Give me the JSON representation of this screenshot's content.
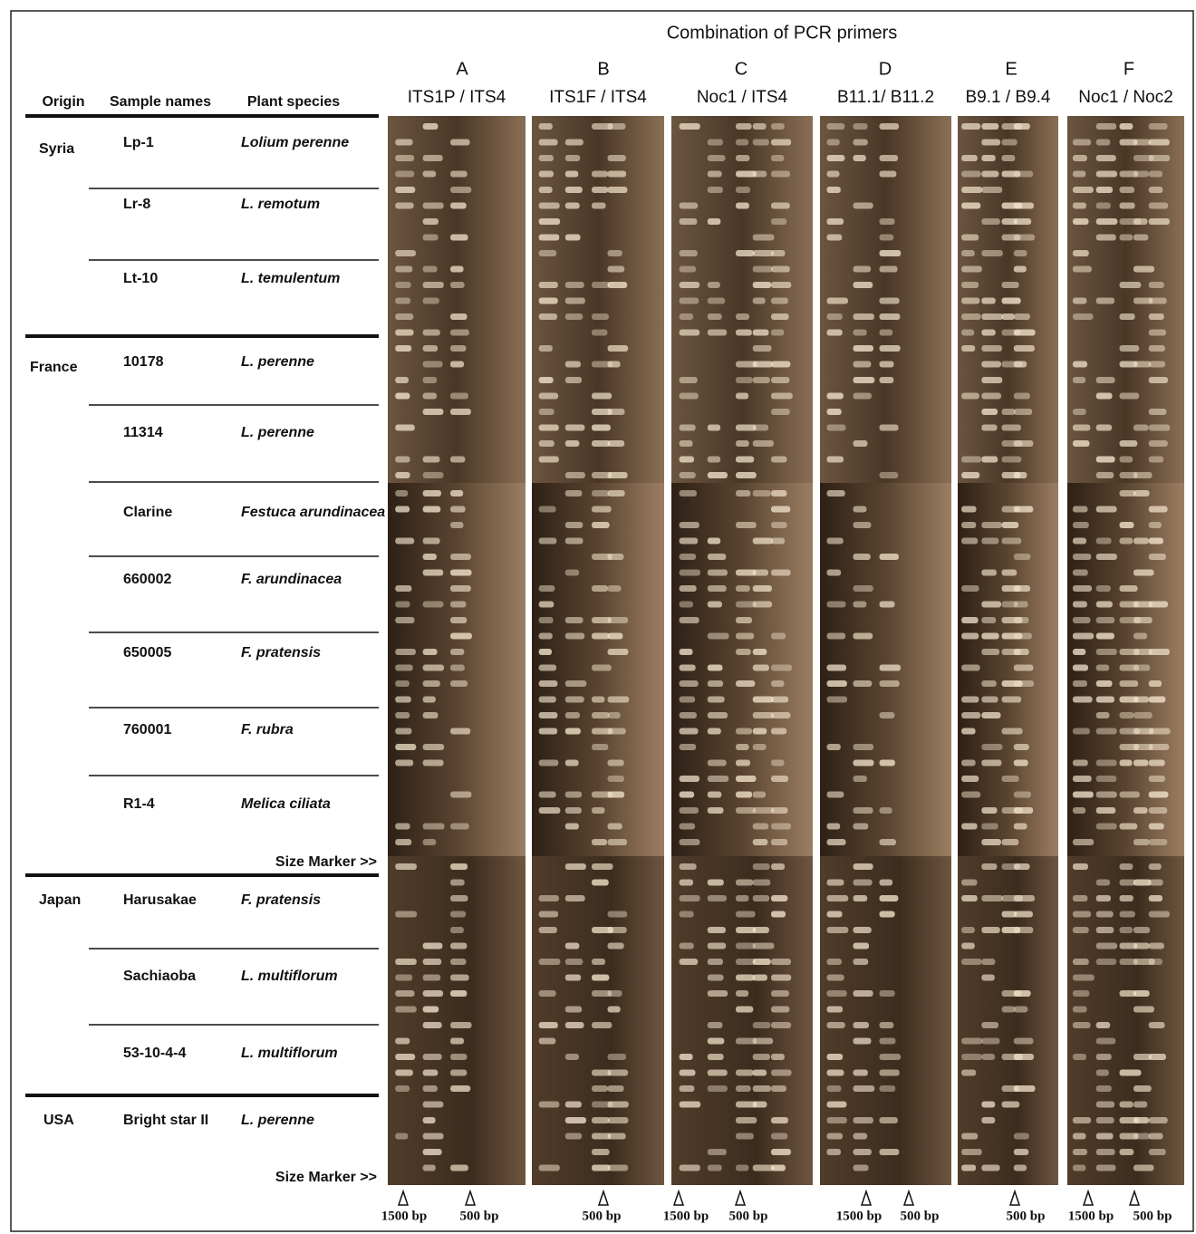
{
  "title": "Combination of PCR primers",
  "primers": [
    {
      "letter": "A",
      "pair": "ITS1P / ITS4"
    },
    {
      "letter": "B",
      "pair": "ITS1F / ITS4"
    },
    {
      "letter": "C",
      "pair": "Noc1 / ITS4"
    },
    {
      "letter": "D",
      "pair": "B11.1/ B11.2"
    },
    {
      "letter": "E",
      "pair": "B9.1 / B9.4"
    },
    {
      "letter": "F",
      "pair": "Noc1 / Noc2"
    }
  ],
  "table": {
    "headers": [
      "Origin",
      "Sample names",
      "Plant species"
    ],
    "groups": [
      {
        "origin": "Syria",
        "samples": [
          {
            "name": "Lp-1",
            "species": "Lolium perenne"
          },
          {
            "name": "Lr-8",
            "species": "L.  remotum"
          },
          {
            "name": "Lt-10",
            "species": "L. temulentum"
          }
        ]
      },
      {
        "origin": "France",
        "samples": [
          {
            "name": "10178",
            "species": "L. perenne"
          },
          {
            "name": "11314",
            "species": "L. perenne"
          },
          {
            "name": "Clarine",
            "species": "Festuca arundinacea"
          },
          {
            "name": "660002",
            "species": "F. arundinacea"
          },
          {
            "name": "650005",
            "species": "F. pratensis"
          },
          {
            "name": "760001",
            "species": "F. rubra"
          },
          {
            "name": "R1-4",
            "species": "Melica ciliata"
          }
        ]
      },
      {
        "origin": "Japan",
        "samples": [
          {
            "name": "Harusakae",
            "species": "F. pratensis"
          },
          {
            "name": "Sachiaoba",
            "species": "L. multiflorum"
          },
          {
            "name": "53-10-4-4",
            "species": "L. multiflorum"
          }
        ]
      },
      {
        "origin": "USA",
        "samples": [
          {
            "name": "Bright star II",
            "species": "L. perenne"
          }
        ]
      }
    ],
    "size_markers": [
      "Size Marker >>",
      "Size Marker >>"
    ]
  },
  "markers": [
    "1500 bp",
    "500 bp",
    "500 bp",
    "1500 bp",
    "500 bp",
    "1500 bp",
    "500 bp",
    "500 bp",
    "1500 bp",
    "500 bp"
  ]
}
